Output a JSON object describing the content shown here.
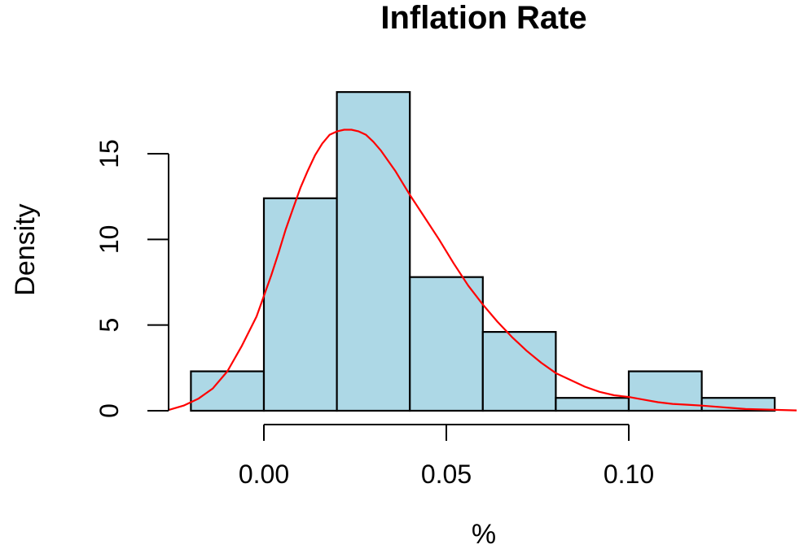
{
  "chart_data": {
    "type": "histogram",
    "title": "Inflation Rate",
    "xlabel": "%",
    "ylabel": "Density",
    "xlim": [
      -0.03,
      0.15
    ],
    "ylim": [
      0,
      19
    ],
    "x_ticks": [
      {
        "value": 0.0,
        "label": "0.00"
      },
      {
        "value": 0.05,
        "label": "0.05"
      },
      {
        "value": 0.1,
        "label": "0.10"
      }
    ],
    "y_ticks": [
      {
        "value": 0,
        "label": "0"
      },
      {
        "value": 5,
        "label": "5"
      },
      {
        "value": 10,
        "label": "10"
      },
      {
        "value": 15,
        "label": "15"
      }
    ],
    "bins": [
      {
        "start": -0.02,
        "end": 0.0,
        "density": 2.3
      },
      {
        "start": 0.0,
        "end": 0.02,
        "density": 12.4
      },
      {
        "start": 0.02,
        "end": 0.04,
        "density": 18.6
      },
      {
        "start": 0.04,
        "end": 0.06,
        "density": 7.8
      },
      {
        "start": 0.06,
        "end": 0.08,
        "density": 4.6
      },
      {
        "start": 0.08,
        "end": 0.1,
        "density": 0.75
      },
      {
        "start": 0.1,
        "end": 0.12,
        "density": 2.3
      },
      {
        "start": 0.12,
        "end": 0.14,
        "density": 0.75
      }
    ],
    "density_curve": {
      "x": [
        -0.026,
        -0.022,
        -0.018,
        -0.014,
        -0.01,
        -0.006,
        -0.002,
        0.0,
        0.002,
        0.004,
        0.006,
        0.008,
        0.01,
        0.012,
        0.014,
        0.016,
        0.018,
        0.02,
        0.022,
        0.024,
        0.026,
        0.028,
        0.03,
        0.032,
        0.034,
        0.036,
        0.038,
        0.04,
        0.044,
        0.048,
        0.052,
        0.056,
        0.06,
        0.064,
        0.068,
        0.072,
        0.076,
        0.08,
        0.084,
        0.088,
        0.092,
        0.096,
        0.1,
        0.104,
        0.108,
        0.112,
        0.116,
        0.12,
        0.126,
        0.132,
        0.14,
        0.146
      ],
      "y": [
        0.05,
        0.3,
        0.7,
        1.3,
        2.3,
        3.8,
        5.5,
        6.7,
        7.9,
        9.2,
        10.6,
        11.8,
        13.0,
        14.0,
        14.9,
        15.6,
        16.1,
        16.3,
        16.4,
        16.4,
        16.3,
        16.1,
        15.7,
        15.2,
        14.6,
        14.0,
        13.3,
        12.6,
        11.3,
        10.0,
        8.6,
        7.3,
        6.2,
        5.2,
        4.3,
        3.5,
        2.8,
        2.2,
        1.8,
        1.4,
        1.1,
        0.9,
        0.8,
        0.65,
        0.5,
        0.4,
        0.35,
        0.3,
        0.2,
        0.1,
        0.05,
        0.02
      ]
    },
    "colors": {
      "bar_fill": "#add8e6",
      "bar_stroke": "#000000",
      "curve": "#ff0000"
    },
    "grid": false,
    "legend": "none"
  }
}
